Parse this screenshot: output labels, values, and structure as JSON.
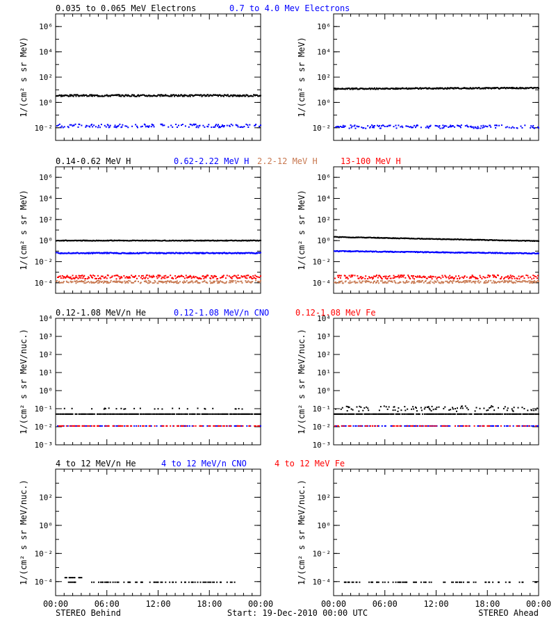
{
  "colors": {
    "black": "#000000",
    "blue": "#0000ff",
    "tan": "#c87850",
    "red": "#ff0000"
  },
  "time_axis": {
    "ticks": [
      "00:00",
      "06:00",
      "12:00",
      "18:00",
      "00:00"
    ],
    "start_label": "Start: 19-Dec-2010 00:00 UTC",
    "left_label": "STEREO Behind",
    "right_label": "STEREO Ahead"
  },
  "chart_data": [
    {
      "type": "scatter",
      "row": 1,
      "yscale": "log",
      "ylabel": "1/(cm² s sr MeV)",
      "ylim": [
        0.001,
        10000000
      ],
      "yticks": [
        {
          "value": 1000000,
          "label": "10⁶"
        },
        {
          "value": 10000,
          "label": "10⁴"
        },
        {
          "value": 100,
          "label": "10²"
        },
        {
          "value": 1,
          "label": "10⁰"
        },
        {
          "value": 0.01,
          "label": "10⁻²"
        }
      ],
      "legend": [
        {
          "text": "0.035 to 0.065 MeV Electrons",
          "color": "#000000"
        },
        {
          "text": "0.7 to 4.0 Mev Electrons",
          "color": "#0000ff"
        }
      ],
      "panels": [
        {
          "spacecraft": "STEREO Behind",
          "series": [
            {
              "color": "#000000",
              "level": 3.5,
              "spread": 0.07,
              "density": 1.0
            },
            {
              "color": "#0000ff",
              "level": 0.014,
              "spread": 0.13,
              "density": 0.5
            }
          ]
        },
        {
          "spacecraft": "STEREO Ahead",
          "series": [
            {
              "color": "#000000",
              "level": 12,
              "end_level": 14,
              "spread": 0.05,
              "density": 1.0
            },
            {
              "color": "#0000ff",
              "level": 0.012,
              "spread": 0.13,
              "density": 0.5
            }
          ]
        }
      ]
    },
    {
      "type": "scatter",
      "row": 2,
      "yscale": "log",
      "ylabel": "1/(cm² s sr MeV)",
      "ylim": [
        1e-05,
        10000000
      ],
      "yticks": [
        {
          "value": 1000000,
          "label": "10⁶"
        },
        {
          "value": 10000,
          "label": "10⁴"
        },
        {
          "value": 100,
          "label": "10²"
        },
        {
          "value": 1,
          "label": "10⁰"
        },
        {
          "value": 0.01,
          "label": "10⁻²"
        },
        {
          "value": 0.0001,
          "label": "10⁻⁴"
        }
      ],
      "legend": [
        {
          "text": "0.14-0.62 MeV H",
          "color": "#000000"
        },
        {
          "text": "0.62-2.22 MeV H",
          "color": "#0000ff"
        },
        {
          "text": "2.2-12 MeV H",
          "color": "#c87850"
        },
        {
          "text": "13-100 MeV H",
          "color": "#ff0000"
        }
      ],
      "panels": [
        {
          "spacecraft": "STEREO Behind",
          "series": [
            {
              "color": "#000000",
              "level": 1.0,
              "spread": 0.03,
              "density": 1.0
            },
            {
              "color": "#0000ff",
              "level": 0.065,
              "spread": 0.05,
              "density": 1.0
            },
            {
              "color": "#ff0000",
              "level": 0.00035,
              "spread": 0.18,
              "density": 0.7
            },
            {
              "color": "#c87850",
              "level": 0.00012,
              "spread": 0.12,
              "density": 0.7
            }
          ]
        },
        {
          "spacecraft": "STEREO Ahead",
          "series": [
            {
              "color": "#000000",
              "level": 2.2,
              "end_level": 0.9,
              "spread": 0.03,
              "density": 1.0
            },
            {
              "color": "#0000ff",
              "level": 0.1,
              "end_level": 0.06,
              "spread": 0.04,
              "density": 1.0
            },
            {
              "color": "#ff0000",
              "level": 0.00035,
              "spread": 0.18,
              "density": 0.7
            },
            {
              "color": "#c87850",
              "level": 0.00012,
              "spread": 0.12,
              "density": 0.7
            }
          ]
        }
      ]
    },
    {
      "type": "scatter",
      "row": 3,
      "yscale": "log",
      "ylabel": "1/(cm² s sr MeV/nuc.)",
      "ylim": [
        0.001,
        10000
      ],
      "yticks": [
        {
          "value": 10000,
          "label": "10⁴"
        },
        {
          "value": 1000,
          "label": "10³"
        },
        {
          "value": 100,
          "label": "10²"
        },
        {
          "value": 10,
          "label": "10¹"
        },
        {
          "value": 1,
          "label": "10⁰"
        },
        {
          "value": 0.1,
          "label": "10⁻¹"
        },
        {
          "value": 0.01,
          "label": "10⁻²"
        },
        {
          "value": 0.001,
          "label": "10⁻³"
        }
      ],
      "legend": [
        {
          "text": "0.12-1.08 MeV/n He",
          "color": "#000000"
        },
        {
          "text": "0.12-1.08 MeV/n CNO",
          "color": "#0000ff"
        },
        {
          "text": "0.12-1.08 MeV Fe",
          "color": "#ff0000"
        }
      ],
      "panels": [
        {
          "spacecraft": "STEREO Behind",
          "series": [
            {
              "color": "#000000",
              "level": 0.05,
              "spread": 0.0,
              "density": 0.75
            },
            {
              "color": "#000000",
              "level": 0.1,
              "spread": 0.03,
              "density": 0.1
            },
            {
              "color": "#0000ff",
              "level": 0.011,
              "spread": 0.0,
              "density": 0.3
            },
            {
              "color": "#ff0000",
              "level": 0.011,
              "spread": 0.0,
              "density": 0.3
            }
          ]
        },
        {
          "spacecraft": "STEREO Ahead",
          "series": [
            {
              "color": "#000000",
              "level": 0.05,
              "spread": 0.0,
              "density": 0.8
            },
            {
              "color": "#000000",
              "level": 0.1,
              "spread": 0.15,
              "density": 0.3
            },
            {
              "color": "#0000ff",
              "level": 0.011,
              "spread": 0.0,
              "density": 0.35
            },
            {
              "color": "#ff0000",
              "level": 0.011,
              "spread": 0.0,
              "density": 0.2
            }
          ]
        }
      ]
    },
    {
      "type": "scatter",
      "row": 4,
      "yscale": "log",
      "ylabel": "1/(cm² s sr MeV/nuc.)",
      "ylim": [
        1e-05,
        10000
      ],
      "yticks": [
        {
          "value": 100,
          "label": "10²"
        },
        {
          "value": 1,
          "label": "10⁰"
        },
        {
          "value": 0.01,
          "label": "10⁻²"
        },
        {
          "value": 0.0001,
          "label": "10⁻⁴"
        }
      ],
      "legend": [
        {
          "text": "4 to 12 MeV/n He",
          "color": "#000000"
        },
        {
          "text": "4 to 12 MeV/n CNO",
          "color": "#0000ff"
        },
        {
          "text": "4 to 12 MeV Fe",
          "color": "#ff0000"
        }
      ],
      "panels": [
        {
          "spacecraft": "STEREO Behind",
          "series": [
            {
              "color": "#000000",
              "level": 9e-05,
              "spread": 0.0,
              "density": 0.25,
              "x_range": [
                1,
                21
              ]
            },
            {
              "color": "#000000",
              "level": 0.00019,
              "spread": 0.0,
              "density": 0.5,
              "x_range": [
                1,
                3
              ]
            }
          ]
        },
        {
          "spacecraft": "STEREO Ahead",
          "series": [
            {
              "color": "#000000",
              "level": 9e-05,
              "spread": 0.0,
              "density": 0.25,
              "x_range": [
                1,
                23.8
              ]
            }
          ]
        }
      ]
    }
  ]
}
